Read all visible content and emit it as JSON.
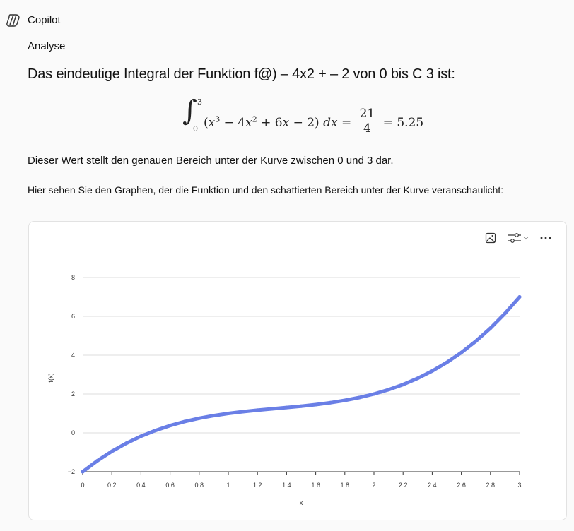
{
  "header": {
    "brand": "Copilot",
    "logo_icon": "copilot-logo-icon"
  },
  "message": {
    "label": "Analyse",
    "heading": "Das eindeutige Integral der Funktion f@) – 4x2 + – 2 von 0 bis C 3 ist:",
    "math": {
      "integral": "∫",
      "upper": "3",
      "lower": "0",
      "open": "(",
      "x1": "x",
      "e1": "3",
      "t2": " − 4",
      "x2": "x",
      "e2": "2",
      "t3": " + 6",
      "x3": "x",
      "t4": " − 2) ",
      "dx": "dx",
      "eq1": " = ",
      "num": "21",
      "den": "4",
      "eq2": " = 5.25"
    },
    "para1": "Dieser Wert stellt den genauen Bereich unter der Kurve zwischen 0 und 3 dar.",
    "para2": "Hier sehen Sie den Graphen, der die Funktion und den schattierten Bereich unter der Kurve veranschaulicht:"
  },
  "chart_toolbar": {
    "icons": [
      "image-icon",
      "sliders-icon",
      "chevron-down-icon",
      "more-icon"
    ]
  },
  "chart_data": {
    "type": "line",
    "xlabel": "x",
    "ylabel": "f(x)",
    "xlim": [
      0,
      3
    ],
    "ylim": [
      -2,
      8
    ],
    "x_ticks": [
      "0",
      "0.2",
      "0.4",
      "0.6",
      "0.8",
      "1",
      "1.2",
      "1.4",
      "1.6",
      "1.8",
      "2",
      "2.2",
      "2.4",
      "2.6",
      "2.8",
      "3"
    ],
    "y_ticks": [
      "−2",
      "0",
      "2",
      "4",
      "6",
      "8"
    ],
    "grid": "horizontal",
    "color": "#6a7fe6",
    "x": [
      0,
      0.1,
      0.2,
      0.3,
      0.4,
      0.5,
      0.6,
      0.7,
      0.8,
      0.9,
      1.0,
      1.1,
      1.2,
      1.3,
      1.4,
      1.5,
      1.6,
      1.7,
      1.8,
      1.9,
      2.0,
      2.1,
      2.2,
      2.3,
      2.4,
      2.5,
      2.6,
      2.7,
      2.8,
      2.9,
      3.0
    ],
    "y": [
      -2,
      -1.439,
      -0.952,
      -0.533,
      -0.176,
      0.125,
      0.376,
      0.583,
      0.752,
      0.889,
      1,
      1.091,
      1.168,
      1.237,
      1.304,
      1.375,
      1.456,
      1.553,
      1.672,
      1.819,
      2,
      2.221,
      2.488,
      2.807,
      3.184,
      3.625,
      4.136,
      4.723,
      5.392,
      6.149,
      7
    ]
  }
}
